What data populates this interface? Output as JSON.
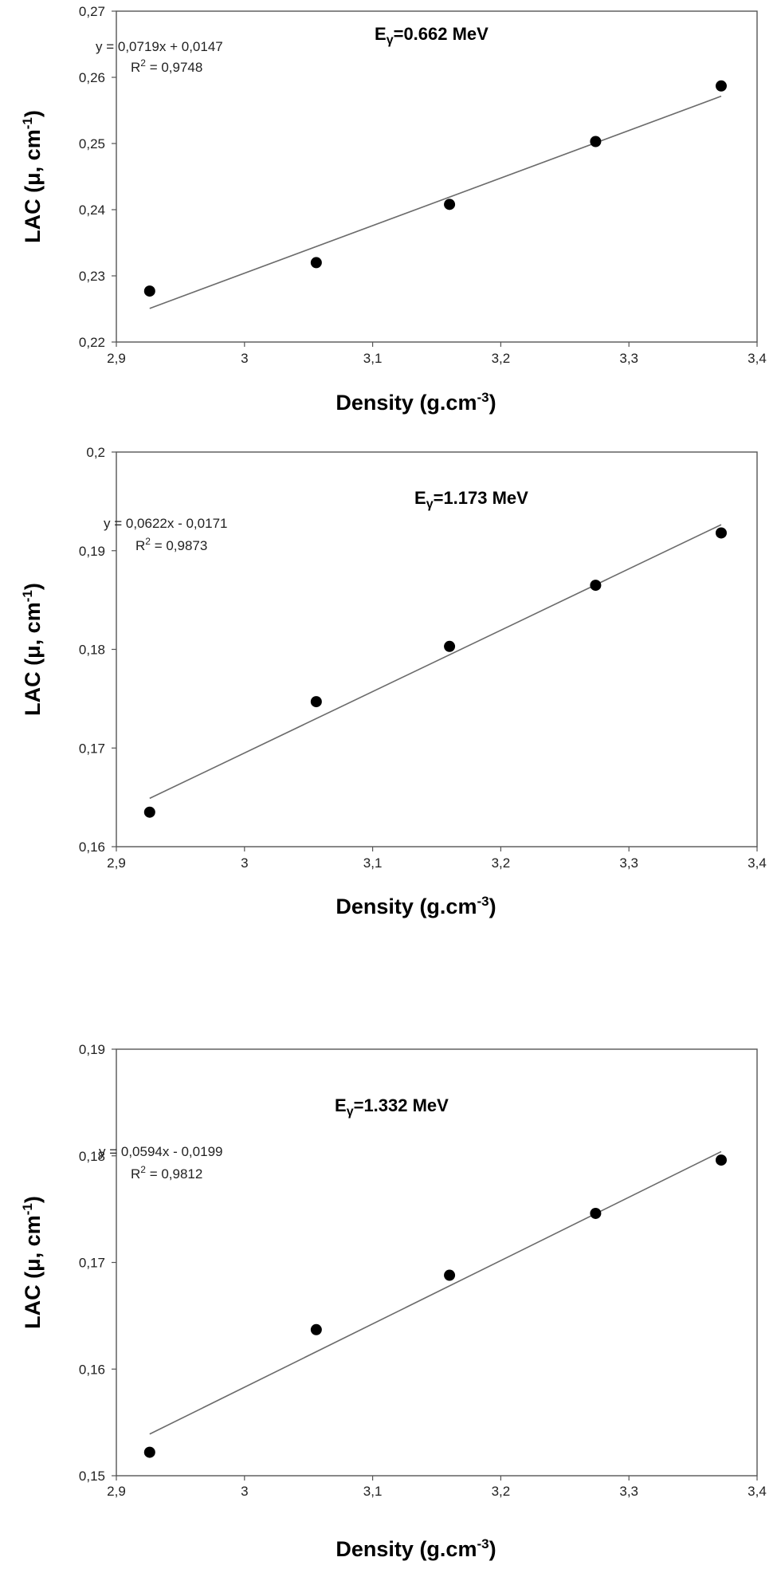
{
  "chart_data": [
    {
      "type": "scatter",
      "energy_label": "=0.662 MeV",
      "energy_symbol": "E",
      "energy_sub": "γ",
      "equation": "y = 0,0719x + 0,0147",
      "r2_value": " = 0,9748",
      "r2_symbol": "R",
      "r2_sup": "2",
      "xlabel": "Density (g.cm",
      "xlabel_sup": "-3",
      "xlabel_end": ")",
      "ylabel": "LAC (μ, cm",
      "ylabel_sup": "-1",
      "ylabel_end": ")",
      "xlim": [
        2.9,
        3.4
      ],
      "ylim": [
        0.22,
        0.27
      ],
      "xticks": [
        2.9,
        3.0,
        3.1,
        3.2,
        3.3,
        3.4
      ],
      "xtick_labels": [
        "2,9",
        "3",
        "3,1",
        "3,2",
        "3,3",
        "3,4"
      ],
      "yticks": [
        0.22,
        0.23,
        0.24,
        0.25,
        0.26,
        0.27
      ],
      "ytick_labels": [
        "0,22",
        "0,23",
        "0,24",
        "0,25",
        "0,26",
        "0,27"
      ],
      "points": [
        {
          "x": 2.926,
          "y": 0.2277
        },
        {
          "x": 3.056,
          "y": 0.232
        },
        {
          "x": 3.16,
          "y": 0.2408
        },
        {
          "x": 3.274,
          "y": 0.2503
        },
        {
          "x": 3.372,
          "y": 0.2587
        }
      ],
      "fit": {
        "slope": 0.0719,
        "intercept": 0.0147
      }
    },
    {
      "type": "scatter",
      "energy_label": "=1.173 MeV",
      "energy_symbol": "E",
      "energy_sub": "γ",
      "equation": "y = 0,0622x - 0,0171",
      "r2_value": " = 0,9873",
      "r2_symbol": "R",
      "r2_sup": "2",
      "xlabel": "Density (g.cm",
      "xlabel_sup": "-3",
      "xlabel_end": ")",
      "ylabel": "LAC (μ, cm",
      "ylabel_sup": "-1",
      "ylabel_end": ")",
      "xlim": [
        2.9,
        3.4
      ],
      "ylim": [
        0.16,
        0.2
      ],
      "xticks": [
        2.9,
        3.0,
        3.1,
        3.2,
        3.3,
        3.4
      ],
      "xtick_labels": [
        "2,9",
        "3",
        "3,1",
        "3,2",
        "3,3",
        "3,4"
      ],
      "yticks": [
        0.16,
        0.17,
        0.18,
        0.19,
        0.2
      ],
      "ytick_labels": [
        "0,16",
        "0,17",
        "0,18",
        "0,19",
        "0,2"
      ],
      "points": [
        {
          "x": 2.926,
          "y": 0.1635
        },
        {
          "x": 3.056,
          "y": 0.1747
        },
        {
          "x": 3.16,
          "y": 0.1803
        },
        {
          "x": 3.274,
          "y": 0.1865
        },
        {
          "x": 3.372,
          "y": 0.1918
        }
      ],
      "fit": {
        "slope": 0.0622,
        "intercept": -0.0171
      }
    },
    {
      "type": "scatter",
      "energy_label": "=1.332 MeV",
      "energy_symbol": "E",
      "energy_sub": "γ",
      "equation": "y = 0,0594x - 0,0199",
      "r2_value": " = 0,9812",
      "r2_symbol": "R",
      "r2_sup": "2",
      "xlabel": "Density (g.cm",
      "xlabel_sup": "-3",
      "xlabel_end": ")",
      "ylabel": "LAC (μ, cm",
      "ylabel_sup": "-1",
      "ylabel_end": ")",
      "xlim": [
        2.9,
        3.4
      ],
      "ylim": [
        0.15,
        0.19
      ],
      "xticks": [
        2.9,
        3.0,
        3.1,
        3.2,
        3.3,
        3.4
      ],
      "xtick_labels": [
        "2,9",
        "3",
        "3,1",
        "3,2",
        "3,3",
        "3,4"
      ],
      "yticks": [
        0.15,
        0.16,
        0.17,
        0.18,
        0.19
      ],
      "ytick_labels": [
        "0,15",
        "0,16",
        "0,17",
        "0,18",
        "0,19"
      ],
      "points": [
        {
          "x": 2.926,
          "y": 0.1522
        },
        {
          "x": 3.056,
          "y": 0.1637
        },
        {
          "x": 3.16,
          "y": 0.1688
        },
        {
          "x": 3.274,
          "y": 0.1746
        },
        {
          "x": 3.372,
          "y": 0.1796
        }
      ],
      "fit": {
        "slope": 0.0594,
        "intercept": -0.0199
      }
    }
  ]
}
